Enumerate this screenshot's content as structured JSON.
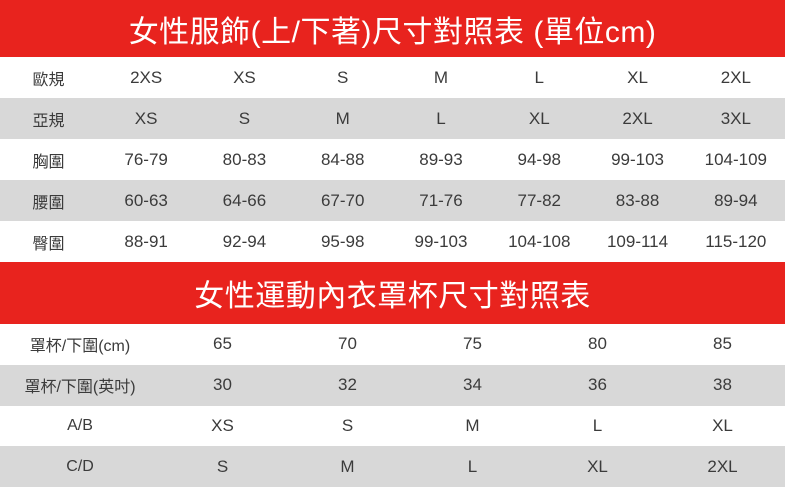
{
  "colors": {
    "header_red": "#e8231e",
    "stripe_gray": "#d8d8d8",
    "text_dark": "#3b3b3b",
    "band_text": "#ffffff"
  },
  "chart_data": [
    {
      "type": "table",
      "title": "女性服飾(上/下著)尺寸對照表 (單位cm)",
      "rows": [
        {
          "label": "歐規",
          "values": [
            "2XS",
            "XS",
            "S",
            "M",
            "L",
            "XL",
            "2XL"
          ]
        },
        {
          "label": "亞規",
          "values": [
            "XS",
            "S",
            "M",
            "L",
            "XL",
            "2XL",
            "3XL"
          ]
        },
        {
          "label": "胸圍",
          "values": [
            "76-79",
            "80-83",
            "84-88",
            "89-93",
            "94-98",
            "99-103",
            "104-109"
          ]
        },
        {
          "label": "腰圍",
          "values": [
            "60-63",
            "64-66",
            "67-70",
            "71-76",
            "77-82",
            "83-88",
            "89-94"
          ]
        },
        {
          "label": "臀圍",
          "values": [
            "88-91",
            "92-94",
            "95-98",
            "99-103",
            "104-108",
            "109-114",
            "115-120"
          ]
        }
      ],
      "layout": {
        "stripe": "alternating white/gray",
        "grid": false,
        "columns": 8
      }
    },
    {
      "type": "table",
      "title": "女性運動內衣罩杯尺寸對照表",
      "rows": [
        {
          "label": "罩杯/下圍(cm)",
          "values": [
            "65",
            "70",
            "75",
            "80",
            "85"
          ]
        },
        {
          "label": "罩杯/下圍(英吋)",
          "values": [
            "30",
            "32",
            "34",
            "36",
            "38"
          ]
        },
        {
          "label": "A/B",
          "values": [
            "XS",
            "S",
            "M",
            "L",
            "XL"
          ]
        },
        {
          "label": "C/D",
          "values": [
            "S",
            "M",
            "L",
            "XL",
            "2XL"
          ]
        }
      ],
      "layout": {
        "stripe": "alternating white/gray",
        "grid": false,
        "columns": 6
      }
    }
  ]
}
